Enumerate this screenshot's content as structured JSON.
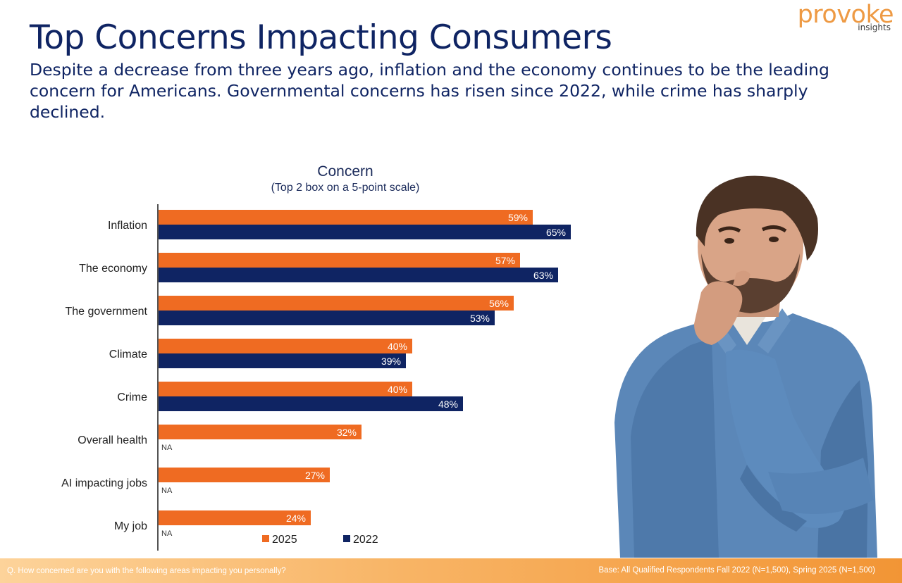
{
  "brand": {
    "name": "provoke",
    "tagline": "insights"
  },
  "header": {
    "title": "Top Concerns Impacting Consumers",
    "subtitle": "Despite a decrease from three years ago, inflation and the economy continues to be the leading concern for Americans. Governmental concerns has risen since 2022, while crime has sharply declined."
  },
  "colors": {
    "series_2025": "#ef6b22",
    "series_2022": "#0f2463",
    "title": "#0f2463",
    "logo": "#ee9a44"
  },
  "chart_data": {
    "type": "bar",
    "orientation": "horizontal",
    "title": "Concern",
    "subtitle": "(Top 2 box on a 5-point scale)",
    "categories": [
      "Inflation",
      "The economy",
      "The government",
      "Climate",
      "Crime",
      "Overall health",
      "AI impacting jobs",
      "My job"
    ],
    "series": [
      {
        "name": "2025",
        "values": [
          59,
          57,
          56,
          40,
          40,
          32,
          27,
          24
        ]
      },
      {
        "name": "2022",
        "values": [
          65,
          63,
          53,
          39,
          48,
          null,
          null,
          null
        ]
      }
    ],
    "missing_label": "NA",
    "value_suffix": "%",
    "xlim": [
      0,
      100
    ],
    "legend": "bottom"
  },
  "footer": {
    "question": "Q. How concerned are you with the following areas impacting you personally?",
    "base": "Base: All Qualified Respondents Fall 2022 (N=1,500), Spring 2025 (N=1,500)"
  }
}
